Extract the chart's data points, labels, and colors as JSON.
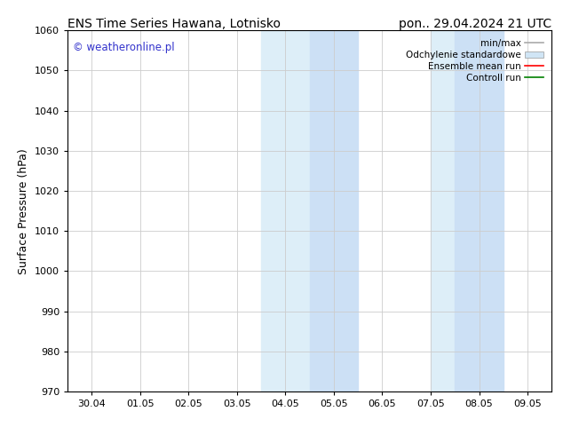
{
  "title_left": "ENS Time Series Hawana, Lotnisko",
  "title_right": "pon.. 29.04.2024 21 UTC",
  "ylabel": "Surface Pressure (hPa)",
  "ylim": [
    970,
    1060
  ],
  "yticks": [
    970,
    980,
    990,
    1000,
    1010,
    1020,
    1030,
    1040,
    1050,
    1060
  ],
  "xtick_labels": [
    "30.04",
    "01.05",
    "02.05",
    "03.05",
    "04.05",
    "05.05",
    "06.05",
    "07.05",
    "08.05",
    "09.05"
  ],
  "xtick_positions": [
    0,
    1,
    2,
    3,
    4,
    5,
    6,
    7,
    8,
    9
  ],
  "shaded_bands": [
    {
      "x_start": 3.5,
      "x_end": 4.0,
      "color": "#daeaf8"
    },
    {
      "x_start": 4.0,
      "x_end": 5.5,
      "color": "#daeaf8"
    },
    {
      "x_start": 7.0,
      "x_end": 7.5,
      "color": "#daeaf8"
    },
    {
      "x_start": 7.5,
      "x_end": 8.5,
      "color": "#daeaf8"
    }
  ],
  "legend_entries": [
    {
      "label": "min/max",
      "color": "#aaaaaa",
      "lw": 1.2,
      "linestyle": "-",
      "type": "line"
    },
    {
      "label": "Odchylenie standardowe",
      "color": "#d0e5f5",
      "lw": 8,
      "linestyle": "-",
      "type": "patch"
    },
    {
      "label": "Ensemble mean run",
      "color": "red",
      "lw": 1.2,
      "linestyle": "-",
      "type": "line"
    },
    {
      "label": "Controll run",
      "color": "green",
      "lw": 1.2,
      "linestyle": "-",
      "type": "line"
    }
  ],
  "watermark": "© weatheronline.pl",
  "watermark_color": "#3333cc",
  "background_color": "#ffffff",
  "grid_color": "#cccccc",
  "title_fontsize": 10,
  "axis_fontsize": 9,
  "tick_fontsize": 8
}
